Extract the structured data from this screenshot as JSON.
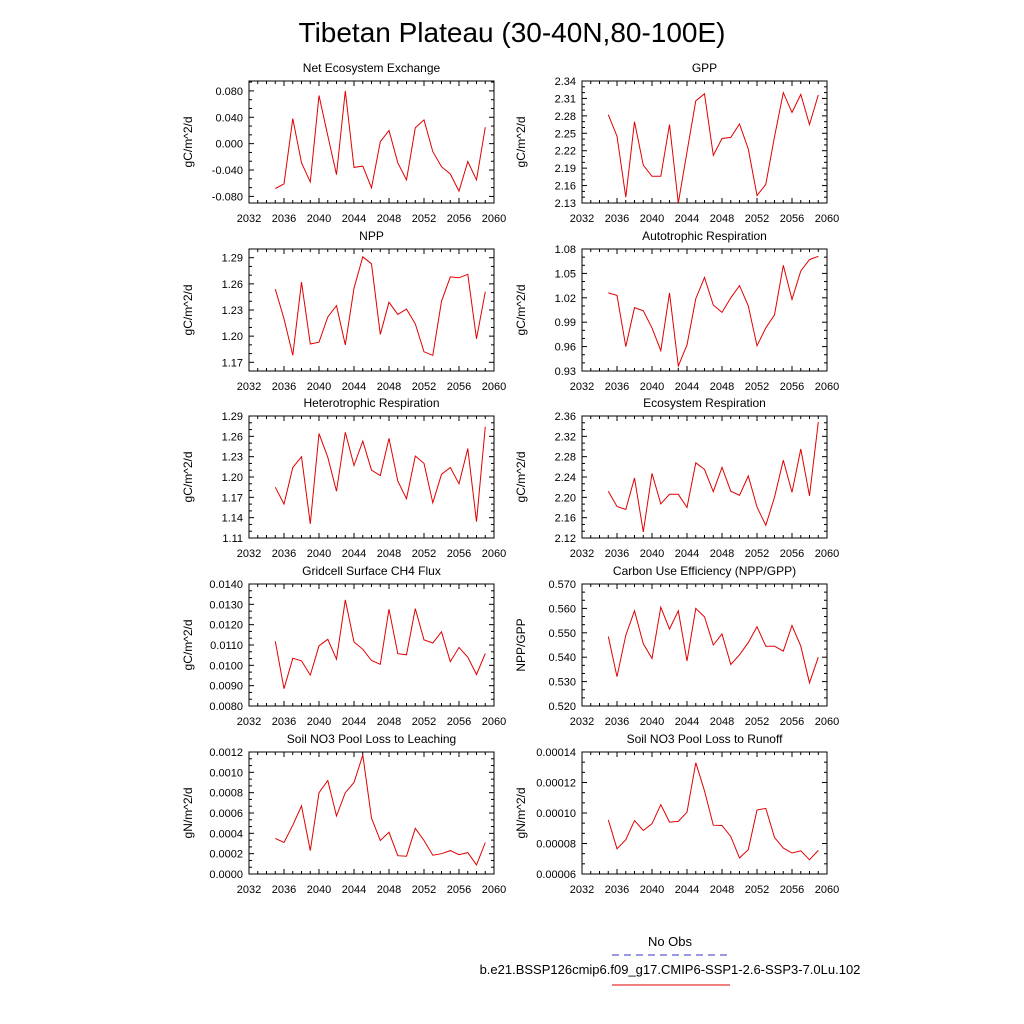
{
  "figure": {
    "title": "Tibetan Plateau (30-40N,80-100E)",
    "legend": {
      "entries": [
        {
          "label": "No Obs",
          "color": "#3333cc",
          "style": "dashed"
        },
        {
          "label": "b.e21.BSSP126cmip6.f09_g17.CMIP6-SSP1-2.6-SSP3-7.0Lu.102",
          "color": "#e00000",
          "style": "solid"
        }
      ]
    }
  },
  "chart_data": [
    {
      "type": "line",
      "title": "Net Ecosystem Exchange",
      "xlabel": "",
      "ylabel": "gC/m^2/d",
      "xlim": [
        2032,
        2060
      ],
      "ylim": [
        -0.09,
        0.095
      ],
      "xticks": [
        2032,
        2036,
        2040,
        2044,
        2048,
        2052,
        2056,
        2060
      ],
      "yticks": [
        -0.08,
        -0.04,
        0.0,
        0.04,
        0.08
      ],
      "ydecimals": 3,
      "x": [
        2035,
        2036,
        2037,
        2038,
        2039,
        2040,
        2041,
        2042,
        2043,
        2044,
        2045,
        2046,
        2047,
        2048,
        2049,
        2050,
        2051,
        2052,
        2053,
        2054,
        2055,
        2056,
        2057,
        2058,
        2059
      ],
      "series": [
        {
          "color": "#e00000",
          "values": [
            -0.068,
            -0.061,
            0.038,
            -0.029,
            -0.058,
            0.073,
            0.012,
            -0.047,
            0.08,
            -0.036,
            -0.034,
            -0.067,
            0.003,
            0.02,
            -0.029,
            -0.055,
            0.024,
            0.036,
            -0.012,
            -0.035,
            -0.046,
            -0.072,
            -0.027,
            -0.055,
            0.025
          ]
        }
      ]
    },
    {
      "type": "line",
      "title": "GPP",
      "xlabel": "",
      "ylabel": "gC/m^2/d",
      "xlim": [
        2032,
        2060
      ],
      "ylim": [
        2.13,
        2.34
      ],
      "xticks": [
        2032,
        2036,
        2040,
        2044,
        2048,
        2052,
        2056,
        2060
      ],
      "yticks": [
        2.13,
        2.16,
        2.19,
        2.22,
        2.25,
        2.28,
        2.31,
        2.34
      ],
      "ydecimals": 2,
      "x": [
        2035,
        2036,
        2037,
        2038,
        2039,
        2040,
        2041,
        2042,
        2043,
        2044,
        2045,
        2046,
        2047,
        2048,
        2049,
        2050,
        2051,
        2052,
        2053,
        2054,
        2055,
        2056,
        2057,
        2058,
        2059
      ],
      "series": [
        {
          "color": "#e00000",
          "values": [
            2.282,
            2.245,
            2.14,
            2.27,
            2.195,
            2.176,
            2.176,
            2.265,
            2.13,
            2.218,
            2.306,
            2.318,
            2.212,
            2.241,
            2.243,
            2.266,
            2.223,
            2.143,
            2.162,
            2.244,
            2.32,
            2.286,
            2.317,
            2.265,
            2.316
          ]
        }
      ]
    },
    {
      "type": "line",
      "title": "NPP",
      "xlabel": "",
      "ylabel": "gC/m^2/d",
      "xlim": [
        2032,
        2060
      ],
      "ylim": [
        1.16,
        1.3
      ],
      "xticks": [
        2032,
        2036,
        2040,
        2044,
        2048,
        2052,
        2056,
        2060
      ],
      "yticks": [
        1.17,
        1.2,
        1.23,
        1.26,
        1.29
      ],
      "ydecimals": 2,
      "x": [
        2035,
        2036,
        2037,
        2038,
        2039,
        2040,
        2041,
        2042,
        2043,
        2044,
        2045,
        2046,
        2047,
        2048,
        2049,
        2050,
        2051,
        2052,
        2053,
        2054,
        2055,
        2056,
        2057,
        2058,
        2059
      ],
      "series": [
        {
          "color": "#e00000",
          "values": [
            1.254,
            1.22,
            1.178,
            1.262,
            1.191,
            1.193,
            1.222,
            1.235,
            1.19,
            1.255,
            1.291,
            1.283,
            1.202,
            1.239,
            1.225,
            1.231,
            1.214,
            1.182,
            1.178,
            1.24,
            1.268,
            1.267,
            1.271,
            1.197,
            1.251
          ]
        }
      ]
    },
    {
      "type": "line",
      "title": "Autotrophic Respiration",
      "xlabel": "",
      "ylabel": "gC/m^2/d",
      "xlim": [
        2032,
        2060
      ],
      "ylim": [
        0.93,
        1.08
      ],
      "xticks": [
        2032,
        2036,
        2040,
        2044,
        2048,
        2052,
        2056,
        2060
      ],
      "yticks": [
        0.93,
        0.96,
        0.99,
        1.02,
        1.05,
        1.08
      ],
      "ydecimals": 2,
      "x": [
        2035,
        2036,
        2037,
        2038,
        2039,
        2040,
        2041,
        2042,
        2043,
        2044,
        2045,
        2046,
        2047,
        2048,
        2049,
        2050,
        2051,
        2052,
        2053,
        2054,
        2055,
        2056,
        2057,
        2058,
        2059
      ],
      "series": [
        {
          "color": "#e00000",
          "values": [
            1.026,
            1.023,
            0.96,
            1.008,
            1.004,
            0.983,
            0.955,
            1.026,
            0.936,
            0.962,
            1.019,
            1.045,
            1.011,
            1.002,
            1.02,
            1.035,
            1.01,
            0.961,
            0.983,
            0.999,
            1.06,
            1.018,
            1.053,
            1.067,
            1.071
          ]
        }
      ]
    },
    {
      "type": "line",
      "title": "Heterotrophic Respiration",
      "xlabel": "",
      "ylabel": "gC/m^2/d",
      "xlim": [
        2032,
        2060
      ],
      "ylim": [
        1.11,
        1.29
      ],
      "xticks": [
        2032,
        2036,
        2040,
        2044,
        2048,
        2052,
        2056,
        2060
      ],
      "yticks": [
        1.11,
        1.14,
        1.17,
        1.2,
        1.23,
        1.26,
        1.29
      ],
      "ydecimals": 2,
      "x": [
        2035,
        2036,
        2037,
        2038,
        2039,
        2040,
        2041,
        2042,
        2043,
        2044,
        2045,
        2046,
        2047,
        2048,
        2049,
        2050,
        2051,
        2052,
        2053,
        2054,
        2055,
        2056,
        2057,
        2058,
        2059
      ],
      "series": [
        {
          "color": "#e00000",
          "values": [
            1.185,
            1.16,
            1.214,
            1.23,
            1.131,
            1.264,
            1.229,
            1.179,
            1.266,
            1.217,
            1.253,
            1.21,
            1.202,
            1.257,
            1.194,
            1.168,
            1.231,
            1.22,
            1.162,
            1.204,
            1.214,
            1.19,
            1.242,
            1.134,
            1.274
          ]
        }
      ]
    },
    {
      "type": "line",
      "title": "Ecosystem Respiration",
      "xlabel": "",
      "ylabel": "gC/m^2/d",
      "xlim": [
        2032,
        2060
      ],
      "ylim": [
        2.12,
        2.36
      ],
      "xticks": [
        2032,
        2036,
        2040,
        2044,
        2048,
        2052,
        2056,
        2060
      ],
      "yticks": [
        2.12,
        2.16,
        2.2,
        2.24,
        2.28,
        2.32,
        2.36
      ],
      "ydecimals": 2,
      "x": [
        2035,
        2036,
        2037,
        2038,
        2039,
        2040,
        2041,
        2042,
        2043,
        2044,
        2045,
        2046,
        2047,
        2048,
        2049,
        2050,
        2051,
        2052,
        2053,
        2054,
        2055,
        2056,
        2057,
        2058,
        2059
      ],
      "series": [
        {
          "color": "#e00000",
          "values": [
            2.212,
            2.182,
            2.176,
            2.238,
            2.132,
            2.247,
            2.187,
            2.206,
            2.206,
            2.18,
            2.268,
            2.255,
            2.211,
            2.259,
            2.212,
            2.204,
            2.242,
            2.181,
            2.145,
            2.2,
            2.273,
            2.21,
            2.295,
            2.203,
            2.348
          ]
        }
      ]
    },
    {
      "type": "line",
      "title": "Gridcell Surface CH4 Flux",
      "xlabel": "",
      "ylabel": "gC/m^2/d",
      "xlim": [
        2032,
        2060
      ],
      "ylim": [
        0.008,
        0.014
      ],
      "xticks": [
        2032,
        2036,
        2040,
        2044,
        2048,
        2052,
        2056,
        2060
      ],
      "yticks": [
        0.008,
        0.009,
        0.01,
        0.011,
        0.012,
        0.013,
        0.014
      ],
      "ydecimals": 4,
      "x": [
        2035,
        2036,
        2037,
        2038,
        2039,
        2040,
        2041,
        2042,
        2043,
        2044,
        2045,
        2046,
        2047,
        2048,
        2049,
        2050,
        2051,
        2052,
        2053,
        2054,
        2055,
        2056,
        2057,
        2058,
        2059
      ],
      "series": [
        {
          "color": "#e00000",
          "values": [
            0.01118,
            0.00885,
            0.01035,
            0.01022,
            0.00952,
            0.01096,
            0.01128,
            0.0103,
            0.01322,
            0.01115,
            0.01079,
            0.01024,
            0.01005,
            0.01276,
            0.01057,
            0.01052,
            0.01279,
            0.01125,
            0.0111,
            0.01165,
            0.01018,
            0.01088,
            0.0104,
            0.00955,
            0.01058
          ]
        }
      ]
    },
    {
      "type": "line",
      "title": "Carbon Use Efficiency (NPP/GPP)",
      "xlabel": "",
      "ylabel": "NPP/GPP",
      "xlim": [
        2032,
        2060
      ],
      "ylim": [
        0.52,
        0.57
      ],
      "xticks": [
        2032,
        2036,
        2040,
        2044,
        2048,
        2052,
        2056,
        2060
      ],
      "yticks": [
        0.52,
        0.53,
        0.54,
        0.55,
        0.56,
        0.57
      ],
      "ydecimals": 3,
      "x": [
        2035,
        2036,
        2037,
        2038,
        2039,
        2040,
        2041,
        2042,
        2043,
        2044,
        2045,
        2046,
        2047,
        2048,
        2049,
        2050,
        2051,
        2052,
        2053,
        2054,
        2055,
        2056,
        2057,
        2058,
        2059
      ],
      "series": [
        {
          "color": "#e00000",
          "values": [
            0.5485,
            0.532,
            0.549,
            0.559,
            0.5455,
            0.5395,
            0.5605,
            0.5515,
            0.559,
            0.5385,
            0.56,
            0.5565,
            0.545,
            0.5495,
            0.537,
            0.541,
            0.546,
            0.5525,
            0.5445,
            0.5445,
            0.5425,
            0.553,
            0.5445,
            0.5295,
            0.54
          ]
        }
      ]
    },
    {
      "type": "line",
      "title": "Soil NO3 Pool Loss to Leaching",
      "xlabel": "",
      "ylabel": "gN/m^2/d",
      "xlim": [
        2032,
        2060
      ],
      "ylim": [
        0.0,
        0.0012
      ],
      "xticks": [
        2032,
        2036,
        2040,
        2044,
        2048,
        2052,
        2056,
        2060
      ],
      "yticks": [
        0.0,
        0.0002,
        0.0004,
        0.0006,
        0.0008,
        0.001,
        0.0012
      ],
      "ydecimals": 4,
      "x": [
        2035,
        2036,
        2037,
        2038,
        2039,
        2040,
        2041,
        2042,
        2043,
        2044,
        2045,
        2046,
        2047,
        2048,
        2049,
        2050,
        2051,
        2052,
        2053,
        2054,
        2055,
        2056,
        2057,
        2058,
        2059
      ],
      "series": [
        {
          "color": "#e00000",
          "values": [
            0.00035,
            0.00031,
            0.00048,
            0.00067,
            0.00023,
            0.0008,
            0.00092,
            0.00057,
            0.0008,
            0.0009,
            0.00117,
            0.00055,
            0.00033,
            0.00041,
            0.00018,
            0.000175,
            0.00045,
            0.00033,
            0.000185,
            0.0002,
            0.00023,
            0.00019,
            0.00021,
            9e-05,
            0.00031
          ]
        }
      ]
    },
    {
      "type": "line",
      "title": "Soil NO3 Pool Loss to Runoff",
      "xlabel": "",
      "ylabel": "gN/m^2/d",
      "xlim": [
        2032,
        2060
      ],
      "ylim": [
        6e-05,
        0.00014
      ],
      "xticks": [
        2032,
        2036,
        2040,
        2044,
        2048,
        2052,
        2056,
        2060
      ],
      "yticks": [
        6e-05,
        8e-05,
        0.0001,
        0.00012,
        0.00014
      ],
      "ydecimals": 5,
      "x": [
        2035,
        2036,
        2037,
        2038,
        2039,
        2040,
        2041,
        2042,
        2043,
        2044,
        2045,
        2046,
        2047,
        2048,
        2049,
        2050,
        2051,
        2052,
        2053,
        2054,
        2055,
        2056,
        2057,
        2058,
        2059
      ],
      "series": [
        {
          "color": "#e00000",
          "values": [
            9.55e-05,
            7.65e-05,
            8.25e-05,
            9.5e-05,
            8.85e-05,
            9.3e-05,
            0.0001055,
            9.4e-05,
            9.45e-05,
            0.0001005,
            0.000133,
            0.0001145,
            9.2e-05,
            9.18e-05,
            8.45e-05,
            7.05e-05,
            7.6e-05,
            0.000102,
            0.000103,
            8.4e-05,
            7.7e-05,
            7.38e-05,
            7.52e-05,
            6.93e-05,
            7.55e-05
          ]
        }
      ]
    }
  ]
}
